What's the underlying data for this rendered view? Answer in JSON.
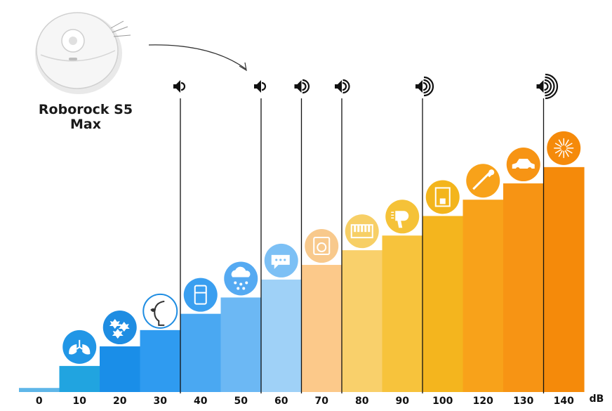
{
  "product": {
    "name_line1": "Roborock S5",
    "name_line2": "Max"
  },
  "chart_data": {
    "type": "bar",
    "categories": [
      "0",
      "10",
      "20",
      "30",
      "40",
      "50",
      "60",
      "70",
      "80",
      "90",
      "100",
      "120",
      "130",
      "140"
    ],
    "values": [
      0.25,
      1.6,
      2.8,
      3.8,
      4.8,
      5.8,
      6.9,
      7.8,
      8.7,
      9.6,
      10.8,
      11.8,
      12.8,
      13.8
    ],
    "unit_label": "dB",
    "bar_colors": [
      "#5fb6e8",
      "#21a4e0",
      "#1a8ee8",
      "#2f9bf0",
      "#4aa8f2",
      "#6cb8f4",
      "#9fd1f7",
      "#fcc98a",
      "#f9d06b",
      "#f7c33c",
      "#f4b51e",
      "#f8a21a",
      "#f79414",
      "#f58a0a"
    ],
    "marker_categories": [
      "40",
      "60",
      "70",
      "80",
      "100",
      "140"
    ],
    "marker_wave_counts": [
      1,
      1,
      2,
      2,
      3,
      4
    ],
    "icons": [
      "lungs-icon",
      "falling-leaves-icon",
      "whisper-icon",
      "refrigerator-icon",
      "rain-cloud-icon",
      "speech-bubble-icon",
      "washing-machine-icon",
      "piano-keys-icon",
      "hair-dryer-icon",
      "coffee-machine-icon",
      "trumpet-icon",
      "police-car-icon",
      "fireworks-icon"
    ],
    "icon_badge_colors": [
      "#2196e6",
      "#1f8de2",
      "#1f8de2",
      "#3a9ff0",
      "#55aaf2",
      "#7cc0f5",
      "#f8c98c",
      "#f7cf66",
      "#f5c238",
      "#f3b51c",
      "#f8a21a",
      "#f79414",
      "#f58a0a"
    ]
  }
}
